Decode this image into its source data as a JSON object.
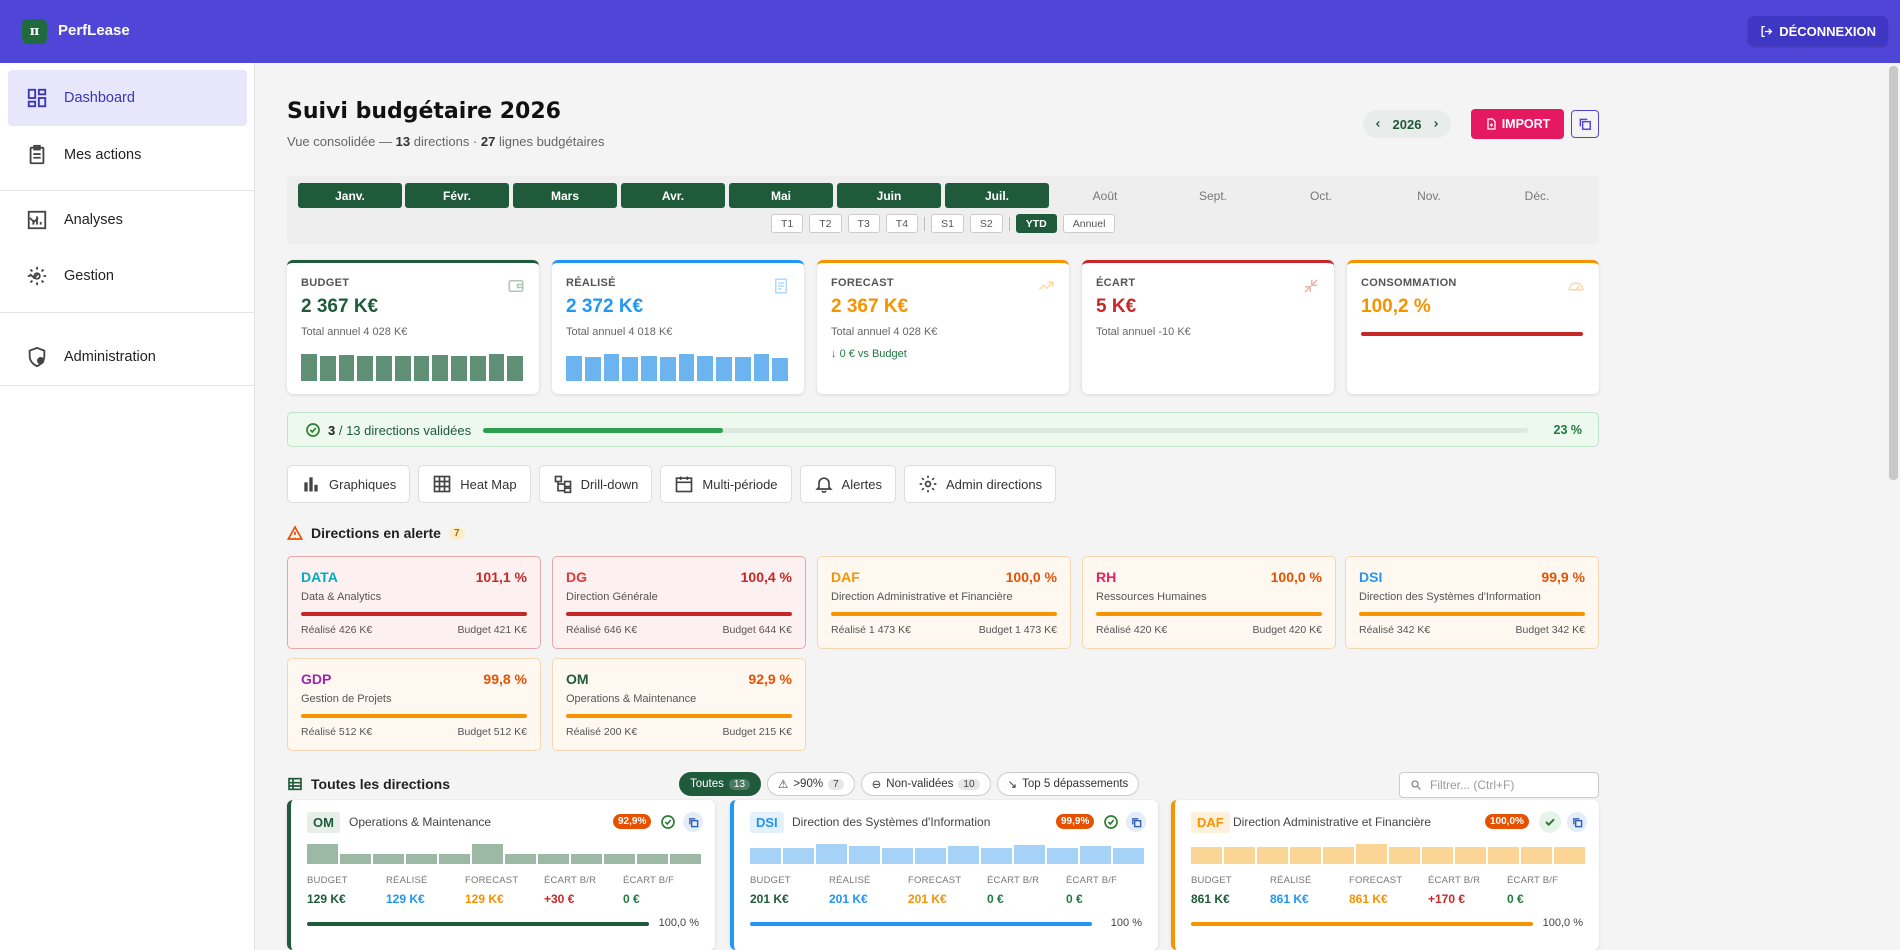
{
  "app": {
    "logo_letter": "π",
    "brand": "PerfLease",
    "logout": "DÉCONNEXION"
  },
  "sidebar": {
    "items": [
      {
        "label": "Dashboard",
        "icon": "dashboard-icon"
      },
      {
        "label": "Mes actions",
        "icon": "clipboard-icon"
      },
      {
        "label": "Analyses",
        "icon": "chart-icon"
      },
      {
        "label": "Gestion",
        "icon": "gear-icon"
      },
      {
        "label": "Administration",
        "icon": "admin-shield-icon"
      }
    ]
  },
  "header": {
    "title": "Suivi budgétaire 2026",
    "sub_prefix": "Vue consolidée — ",
    "dirs": "13",
    "sub_mid": " directions · ",
    "lines": "27",
    "sub_suffix": " lignes budgétaires",
    "year": "2026",
    "import": "IMPORT"
  },
  "months": [
    "Janv.",
    "Févr.",
    "Mars",
    "Avr.",
    "Mai",
    "Juin",
    "Juil.",
    "Août",
    "Sept.",
    "Oct.",
    "Nov.",
    "Déc."
  ],
  "periods": [
    "T1",
    "T2",
    "T3",
    "T4",
    "S1",
    "S2",
    "YTD",
    "Annuel"
  ],
  "kpis": [
    {
      "title": "BUDGET",
      "value": "2 367 K€",
      "sub": "Total annuel 4 028 K€",
      "color": "#1f5a3a"
    },
    {
      "title": "RÉALISÉ",
      "value": "2 372 K€",
      "sub": "Total annuel 4 018 K€",
      "color": "#2196f3"
    },
    {
      "title": "FORECAST",
      "value": "2 367 K€",
      "sub": "Total annuel 4 028 K€",
      "sub2": "0 € vs Budget",
      "color": "#f59300"
    },
    {
      "title": "ÉCART",
      "value": "5 K€",
      "sub": "Total annuel -10 K€",
      "color": "#c62828"
    },
    {
      "title": "CONSOMMATION",
      "value": "100,2 %",
      "color": "#f59300"
    }
  ],
  "validation": {
    "done": "3",
    "text": " / 13 directions validées",
    "pct": "23 %",
    "fill": 0.23
  },
  "tools": [
    "Graphiques",
    "Heat Map",
    "Drill-down",
    "Multi-période",
    "Alertes",
    "Admin directions"
  ],
  "alerts_title": "Directions en alerte",
  "alerts_count": "7",
  "alerts": [
    {
      "code": "DATA",
      "pct": "101,1 %",
      "name": "Data & Analytics",
      "real": "Réalisé 426 K€",
      "bud": "Budget 421 K€",
      "codeColor": "#00acc1",
      "level": "red"
    },
    {
      "code": "DG",
      "pct": "100,4 %",
      "name": "Direction Générale",
      "real": "Réalisé 646 K€",
      "bud": "Budget 644 K€",
      "codeColor": "#e53935",
      "level": "red"
    },
    {
      "code": "DAF",
      "pct": "100,0 %",
      "name": "Direction Administrative et Financière",
      "real": "Réalisé 1 473 K€",
      "bud": "Budget 1 473 K€",
      "codeColor": "#f59300",
      "level": "ora"
    },
    {
      "code": "RH",
      "pct": "100,0 %",
      "name": "Ressources Humaines",
      "real": "Réalisé 420 K€",
      "bud": "Budget 420 K€",
      "codeColor": "#e91e63",
      "level": "ora"
    },
    {
      "code": "DSI",
      "pct": "99,9 %",
      "name": "Direction des Systèmes d'Information",
      "real": "Réalisé 342 K€",
      "bud": "Budget 342 K€",
      "codeColor": "#2196f3",
      "level": "ora"
    },
    {
      "code": "GDP",
      "pct": "99,8 %",
      "name": "Gestion de Projets",
      "real": "Réalisé 512 K€",
      "bud": "Budget 512 K€",
      "codeColor": "#9c27b0",
      "level": "ora"
    },
    {
      "code": "OM",
      "pct": "92,9 %",
      "name": "Operations & Maintenance",
      "real": "Réalisé 200 K€",
      "bud": "Budget 215 K€",
      "codeColor": "#1f5a3a",
      "level": "ora"
    }
  ],
  "all_title": "Toutes les directions",
  "filters": [
    {
      "label": "Toutes",
      "n": "13"
    },
    {
      "label": ">90%",
      "n": "7"
    },
    {
      "label": "Non-validées",
      "n": "10"
    },
    {
      "label": "Top 5 dépassements"
    }
  ],
  "filter_placeholder": "Filtrer... (Ctrl+F)",
  "stat_labels": [
    "BUDGET",
    "RÉALISÉ",
    "FORECAST",
    "ÉCART B/R",
    "ÉCART B/F"
  ],
  "dcards": [
    {
      "code": "OM",
      "name": "Operations & Maintenance",
      "pct": "92,9%",
      "stats": [
        "129 K€",
        "129 K€",
        "129 K€",
        "+30 €",
        "0 €"
      ],
      "ppct": "100,0 %",
      "color": "#1f5a3a"
    },
    {
      "code": "DSI",
      "name": "Direction des Systèmes d'Information",
      "pct": "99,9%",
      "stats": [
        "201 K€",
        "201 K€",
        "201 K€",
        "0 €",
        "0 €"
      ],
      "ppct": "100 %",
      "color": "#2196f3"
    },
    {
      "code": "DAF",
      "name": "Direction Administrative et Financière",
      "pct": "100,0%",
      "stats": [
        "861 K€",
        "861 K€",
        "861 K€",
        "+170 €",
        "0 €"
      ],
      "ppct": "100,0 %",
      "color": "#f59300"
    }
  ]
}
